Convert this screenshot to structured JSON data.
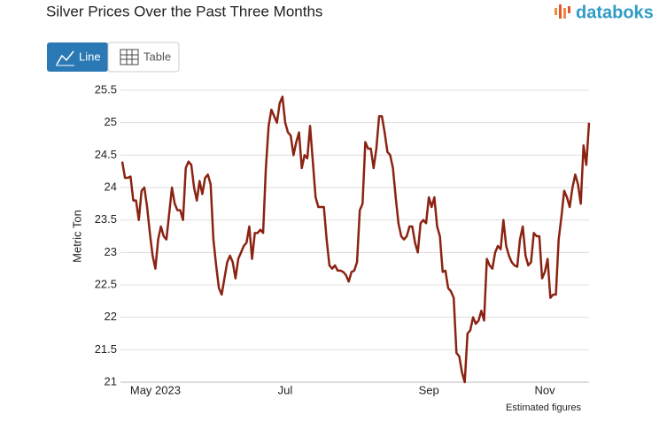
{
  "ui": {
    "logo": "databoks",
    "tabs": [
      "Line",
      "Table"
    ]
  },
  "chart_data": {
    "type": "line",
    "title": "Silver Prices Over the Past Three Months",
    "y_label": "Metric Ton",
    "note": "Estimated figures",
    "ylim": [
      21,
      25.5
    ],
    "yticks": [
      21,
      21.5,
      22,
      22.5,
      23,
      23.5,
      24,
      24.5,
      25,
      25.5
    ],
    "grid": true,
    "categories": [
      null,
      null,
      null,
      null,
      null,
      null,
      null,
      null,
      null,
      null,
      null,
      null,
      "May 2023",
      null,
      null,
      null,
      null,
      null,
      null,
      null,
      null,
      null,
      null,
      null,
      null,
      null,
      null,
      null,
      null,
      null,
      null,
      null,
      null,
      null,
      null,
      null,
      null,
      null,
      null,
      null,
      null,
      null,
      null,
      null,
      null,
      null,
      null,
      null,
      null,
      null,
      null,
      null,
      null,
      null,
      null,
      null,
      null,
      null,
      null,
      "Jul",
      null,
      null,
      null,
      null,
      null,
      null,
      null,
      null,
      null,
      null,
      null,
      null,
      null,
      null,
      null,
      null,
      null,
      null,
      null,
      null,
      null,
      null,
      null,
      null,
      null,
      null,
      null,
      null,
      null,
      null,
      null,
      null,
      null,
      null,
      null,
      null,
      null,
      null,
      null,
      null,
      null,
      null,
      null,
      null,
      null,
      null,
      null,
      null,
      null,
      null,
      null,
      "Sep",
      null,
      null,
      null,
      null,
      null,
      null,
      null,
      null,
      null,
      null,
      null,
      null,
      null,
      null,
      null,
      null,
      null,
      null,
      null,
      null,
      null,
      null,
      null,
      null,
      null,
      null,
      null,
      null,
      null,
      null,
      null,
      null,
      null,
      null,
      null,
      null,
      null,
      null,
      null,
      null,
      null,
      "Nov",
      null,
      null,
      null,
      null,
      null,
      null,
      null,
      null,
      null,
      null,
      null,
      null,
      null,
      null,
      null,
      null
    ],
    "series": [
      {
        "color": "#8b2312",
        "values": [
          24.4,
          24.15,
          24.15,
          24.17,
          23.8,
          23.8,
          23.5,
          23.95,
          24.0,
          23.7,
          23.3,
          22.95,
          22.75,
          23.2,
          23.4,
          23.25,
          23.2,
          23.6,
          24.0,
          23.75,
          23.65,
          23.65,
          23.5,
          24.3,
          24.4,
          24.35,
          24.0,
          23.8,
          24.1,
          23.9,
          24.15,
          24.2,
          24.05,
          23.2,
          22.8,
          22.45,
          22.35,
          22.6,
          22.85,
          22.95,
          22.85,
          22.6,
          22.9,
          23.0,
          23.1,
          23.15,
          23.4,
          22.9,
          23.3,
          23.3,
          23.35,
          23.3,
          24.3,
          24.95,
          25.2,
          25.1,
          25.0,
          25.3,
          25.4,
          25.0,
          24.85,
          24.8,
          24.5,
          24.7,
          24.85,
          24.3,
          24.5,
          24.45,
          24.95,
          24.4,
          23.85,
          23.7,
          23.7,
          23.7,
          23.2,
          22.8,
          22.75,
          22.8,
          22.72,
          22.72,
          22.7,
          22.65,
          22.55,
          22.7,
          22.72,
          22.85,
          23.65,
          23.75,
          24.7,
          24.6,
          24.6,
          24.3,
          24.6,
          25.1,
          25.1,
          24.85,
          24.55,
          24.5,
          24.3,
          23.85,
          23.45,
          23.25,
          23.2,
          23.25,
          23.4,
          23.4,
          23.15,
          23.0,
          23.45,
          23.5,
          23.45,
          23.85,
          23.7,
          23.85,
          23.4,
          23.25,
          22.7,
          22.72,
          22.45,
          22.4,
          22.3,
          21.45,
          21.4,
          21.15,
          21.0,
          21.75,
          21.8,
          22.0,
          21.9,
          21.95,
          22.1,
          21.95,
          22.9,
          22.8,
          22.75,
          23.0,
          23.1,
          23.05,
          23.5,
          23.1,
          22.95,
          22.85,
          22.8,
          22.78,
          23.2,
          23.4,
          22.95,
          22.8,
          22.85,
          23.3,
          23.25,
          23.25,
          22.6,
          22.7,
          22.9,
          22.3,
          22.35,
          22.35,
          23.2,
          23.55,
          23.95,
          23.85,
          23.7,
          24.0,
          24.2,
          24.05,
          23.75,
          24.65,
          24.35,
          25.0
        ]
      }
    ]
  }
}
